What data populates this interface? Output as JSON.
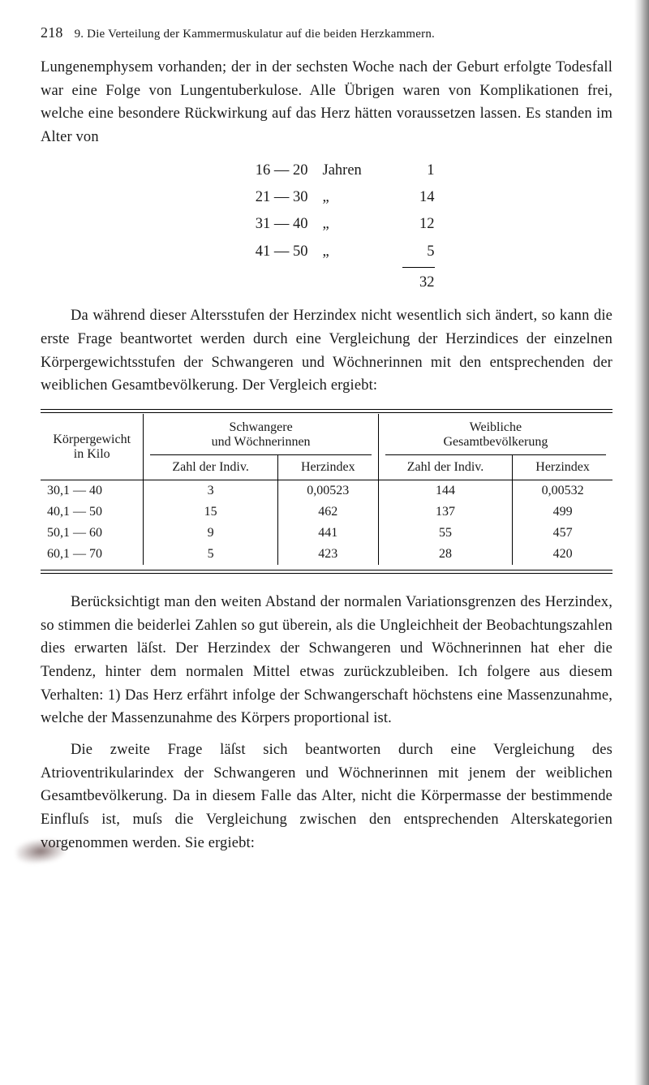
{
  "header": {
    "page_number": "218",
    "running_head": "9. Die Verteilung der Kammermuskulatur auf die beiden Herzkammern."
  },
  "para1": "Lungenemphysem vorhanden; der in der sechsten Woche nach der Geburt erfolgte Todesfall war eine Folge von Lungentuberkulose. Alle Übrigen waren von Komplikationen frei, welche eine besondere Rückwirkung auf das Herz hätten voraussetzen lassen. Es standen im Alter von",
  "numblock": {
    "rows": [
      {
        "range": "16 — 20",
        "unit": "Jahren",
        "n": "1"
      },
      {
        "range": "21 — 30",
        "unit": "„",
        "n": "14"
      },
      {
        "range": "31 — 40",
        "unit": "„",
        "n": "12"
      },
      {
        "range": "41 — 50",
        "unit": "„",
        "n": "5"
      }
    ],
    "total": "32"
  },
  "para2": "Da während dieser Altersstufen der Herzindex nicht wesentlich sich ändert, so kann die erste Frage beantwortet werden durch eine Ver­gleichung der Herzindices der einzelnen Körpergewichtsstufen der Schwan­geren und Wöchnerinnen mit den entsprechenden der weiblichen Gesamt­bevölkerung. Der Vergleich ergiebt:",
  "table": {
    "left_head": "Körpergewicht\nin Kilo",
    "group1": "Schwangere\nund Wöchnerinnen",
    "group2": "Weibliche\nGesamtbevölkerung",
    "sub1": "Zahl der Indiv.",
    "sub2": "Herzindex",
    "sub3": "Zahl der Indiv.",
    "sub4": "Herzindex",
    "rows": [
      {
        "r": "30,1 — 40",
        "a": "3",
        "b": "0,00523",
        "c": "144",
        "d": "0,00532"
      },
      {
        "r": "40,1 — 50",
        "a": "15",
        "b": "462",
        "c": "137",
        "d": "499"
      },
      {
        "r": "50,1 — 60",
        "a": "9",
        "b": "441",
        "c": "55",
        "d": "457"
      },
      {
        "r": "60,1 — 70",
        "a": "5",
        "b": "423",
        "c": "28",
        "d": "420"
      }
    ]
  },
  "para3": "Berücksichtigt man den weiten Abstand der normalen Variations­grenzen des Herzindex, so stimmen die beiderlei Zahlen so gut überein, als die Ungleichheit der Beobachtungszahlen dies erwarten läſst. Der Herzindex der Schwangeren und Wöchnerinnen hat eher die Tendenz, hinter dem normalen Mittel etwas zurückzubleiben. Ich folgere aus diesem Verhalten: 1) Das Herz erfährt infolge der Schwangerschaft höchstens eine Massenzunahme, welche der Massenzunahme des Körpers proportio­nal ist.",
  "para4": "Die zweite Frage läſst sich beantworten durch eine Vergleichung des Atrioventrikularindex der Schwangeren und Wöchnerinnen mit jenem der weiblichen Gesamtbevölkerung. Da in diesem Falle das Alter, nicht die Körpermasse der bestimmende Einfluſs ist, muſs die Vergleichung zwischen den entsprechenden Alterskategorien vorgenommen werden. Sie ergiebt:"
}
